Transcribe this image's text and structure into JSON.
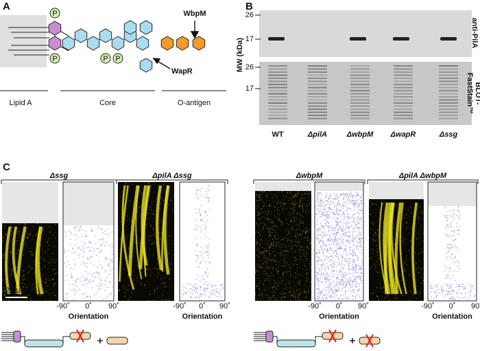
{
  "panel_a": {
    "label": "A",
    "phosphate": [
      "P",
      "P",
      "P",
      "P"
    ],
    "enzymes": [
      "WbpM",
      "WapR"
    ],
    "regions": [
      "Lipid A",
      "Core",
      "O-antigen"
    ]
  },
  "panel_b": {
    "label": "B",
    "top_ticks": [
      "26",
      "17"
    ],
    "bottom_ticks": [
      "26",
      "17"
    ],
    "axis_label": "MW (kDa)",
    "top_blot": "anti-PilA",
    "bottom_blot": [
      "BLOT-",
      "FastStain™"
    ],
    "lanes": [
      "WT",
      "ΔpilA",
      "ΔwbpM",
      "ΔwapR",
      "Δssg"
    ]
  },
  "panel_c": {
    "label": "C",
    "scale_bar": "25 µm",
    "axis_title": "Orientation",
    "groups": [
      {
        "title": "Δssg",
        "ticks": [
          "-90˚",
          "0˚",
          "90˚"
        ]
      },
      {
        "title": "ΔpilA Δssg",
        "ticks": [
          "-90˚",
          "0˚",
          "90˚"
        ]
      },
      {
        "title": "ΔwbpM",
        "ticks": [
          "-90˚",
          "0˚",
          "90˚"
        ]
      },
      {
        "title": "ΔpilA ΔwbpM",
        "ticks": [
          "-90˚",
          "0˚",
          "90˚"
        ]
      }
    ]
  }
}
